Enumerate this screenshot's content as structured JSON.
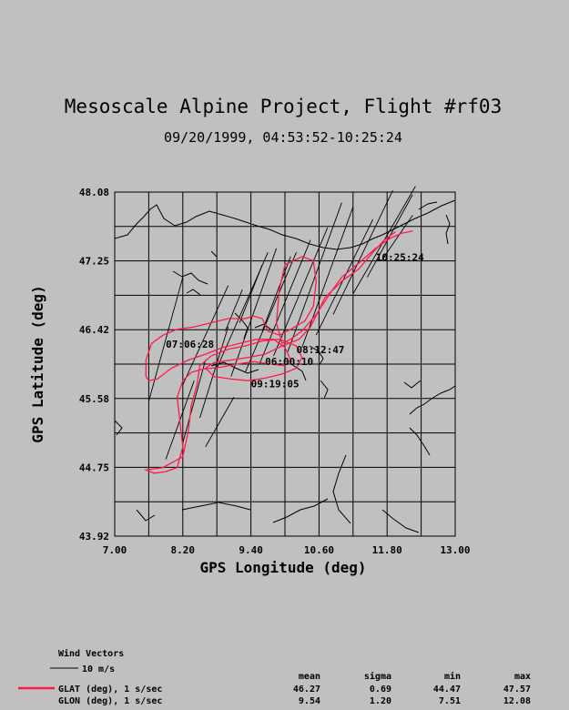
{
  "chart_data": {
    "type": "line",
    "title": "Mesoscale Alpine Project, Flight #rf03",
    "subtitle": "09/20/1999, 04:53:52-10:25:24",
    "xlabel": "GPS Longitude (deg)",
    "ylabel": "GPS Latitude (deg)",
    "xlim": [
      7.0,
      13.0
    ],
    "ylim": [
      43.92,
      48.08
    ],
    "x_ticks": [
      "7.00",
      "8.20",
      "9.40",
      "10.60",
      "11.80",
      "13.00"
    ],
    "y_ticks": [
      "48.08",
      "47.25",
      "46.42",
      "45.58",
      "44.75",
      "43.92"
    ],
    "grid": true,
    "series": [
      {
        "name": "GLAT (deg), 1 s/sec",
        "color": "#ff1a4a",
        "lon": [
          12.25,
          12.05,
          11.85,
          11.6,
          11.3,
          11.0,
          10.8,
          10.55,
          10.3,
          10.1,
          9.95,
          9.85,
          9.9,
          10.0,
          10.3,
          10.5,
          10.55,
          10.5,
          10.35,
          10.1,
          9.9,
          9.7,
          9.6,
          9.45,
          9.3,
          9.0,
          8.7,
          8.4,
          8.1,
          7.85,
          7.65,
          7.55,
          7.55,
          7.6,
          7.75,
          8.0,
          8.3,
          8.6,
          8.9,
          9.2,
          9.5,
          9.8,
          10.0,
          10.1,
          10.0,
          9.75,
          9.45,
          9.15,
          8.85,
          8.55,
          8.35,
          8.2,
          8.1,
          8.15,
          8.2,
          8.1,
          7.9,
          7.7,
          7.55,
          7.85,
          8.2,
          8.3,
          8.35,
          8.45,
          8.5,
          8.7,
          9.0,
          9.3,
          9.6,
          9.9,
          10.2,
          10.3,
          10.2,
          9.95,
          9.65,
          9.35,
          9.05,
          8.75,
          8.6,
          8.75,
          9.05,
          9.35,
          9.65,
          9.95,
          10.25,
          10.45,
          10.6,
          10.7,
          11.0,
          11.3,
          11.55,
          11.75,
          11.95
        ],
        "lat": [
          47.61,
          47.58,
          47.52,
          47.4,
          47.22,
          47.05,
          46.86,
          46.6,
          46.4,
          46.3,
          46.25,
          46.5,
          46.9,
          47.2,
          47.3,
          47.25,
          47.0,
          46.7,
          46.52,
          46.42,
          46.35,
          46.4,
          46.55,
          46.58,
          46.55,
          46.55,
          46.5,
          46.45,
          46.42,
          46.35,
          46.25,
          46.05,
          45.85,
          45.8,
          45.82,
          45.95,
          46.05,
          46.12,
          46.2,
          46.25,
          46.3,
          46.3,
          46.2,
          46.05,
          45.98,
          46.0,
          46.03,
          46.0,
          45.96,
          45.94,
          45.9,
          45.8,
          45.6,
          45.3,
          45.0,
          44.75,
          44.7,
          44.68,
          44.72,
          44.75,
          44.88,
          45.2,
          45.5,
          45.75,
          45.98,
          46.1,
          46.18,
          46.22,
          46.28,
          46.3,
          46.22,
          46.08,
          45.95,
          45.88,
          45.83,
          45.8,
          45.82,
          45.85,
          45.95,
          46.02,
          46.05,
          46.08,
          46.12,
          46.22,
          46.3,
          46.45,
          46.65,
          46.8,
          47.0,
          47.15,
          47.35,
          47.5,
          47.6
        ]
      }
    ],
    "time_labels": [
      {
        "text": "10:25:24",
        "lon": 11.6,
        "lat": 47.25
      },
      {
        "text": "07:06:28",
        "lon": 7.9,
        "lat": 46.2
      },
      {
        "text": "08:12:47",
        "lon": 10.2,
        "lat": 46.13
      },
      {
        "text": "06:00:10",
        "lon": 9.65,
        "lat": 45.99
      },
      {
        "text": "09:19:05",
        "lon": 9.4,
        "lat": 45.72
      }
    ],
    "wind_vectors": [
      {
        "lon": 7.6,
        "lat": 45.55,
        "dlon": 0.6,
        "dlat": 1.5
      },
      {
        "lon": 7.9,
        "lat": 44.85,
        "dlon": 0.5,
        "dlat": 0.95
      },
      {
        "lon": 8.2,
        "lat": 45.05,
        "dlon": 0.4,
        "dlat": 1.0
      },
      {
        "lon": 8.2,
        "lat": 45.75,
        "dlon": 0.8,
        "dlat": 1.2
      },
      {
        "lon": 8.5,
        "lat": 45.35,
        "dlon": 0.5,
        "dlat": 1.1
      },
      {
        "lon": 8.8,
        "lat": 45.95,
        "dlon": 0.9,
        "dlat": 1.4
      },
      {
        "lon": 8.6,
        "lat": 45.0,
        "dlon": 0.5,
        "dlat": 0.6
      },
      {
        "lon": 9.05,
        "lat": 45.85,
        "dlon": 0.8,
        "dlat": 1.55
      },
      {
        "lon": 9.3,
        "lat": 45.9,
        "dlon": 0.9,
        "dlat": 1.45
      },
      {
        "lon": 9.55,
        "lat": 46.0,
        "dlon": 0.9,
        "dlat": 1.5
      },
      {
        "lon": 9.8,
        "lat": 46.1,
        "dlon": 0.95,
        "dlat": 1.55
      },
      {
        "lon": 10.05,
        "lat": 46.15,
        "dlon": 0.95,
        "dlat": 1.8
      },
      {
        "lon": 10.3,
        "lat": 46.2,
        "dlon": 0.9,
        "dlat": 1.7
      },
      {
        "lon": 10.55,
        "lat": 46.35,
        "dlon": 1.0,
        "dlat": 1.4
      },
      {
        "lon": 10.85,
        "lat": 46.6,
        "dlon": 1.05,
        "dlat": 1.5
      },
      {
        "lon": 11.2,
        "lat": 46.85,
        "dlon": 1.1,
        "dlat": 1.3
      },
      {
        "lon": 11.45,
        "lat": 47.05,
        "dlon": 0.8,
        "dlat": 1.0
      },
      {
        "lon": 11.7,
        "lat": 47.25,
        "dlon": 0.55,
        "dlat": 0.55
      },
      {
        "lon": 9.2,
        "lat": 46.5,
        "dlon": 0.4,
        "dlat": 0.7
      },
      {
        "lon": 9.6,
        "lat": 46.4,
        "dlon": 0.5,
        "dlat": 0.9
      },
      {
        "lon": 8.95,
        "lat": 46.4,
        "dlon": 0.3,
        "dlat": 0.5
      }
    ]
  },
  "legend": {
    "wind_title": "Wind Vectors",
    "wind_scale": "10 m/s",
    "headers": [
      "mean",
      "sigma",
      "min",
      "max"
    ],
    "rows": [
      {
        "label": "GLAT (deg), 1 s/sec",
        "color": "#ff1a4a",
        "mean": "46.27",
        "sigma": "0.69",
        "min": "44.47",
        "max": "47.57"
      },
      {
        "label": "GLON (deg), 1 s/sec",
        "color": "",
        "mean": "9.54",
        "sigma": "1.20",
        "min": "7.51",
        "max": "12.08"
      }
    ]
  }
}
